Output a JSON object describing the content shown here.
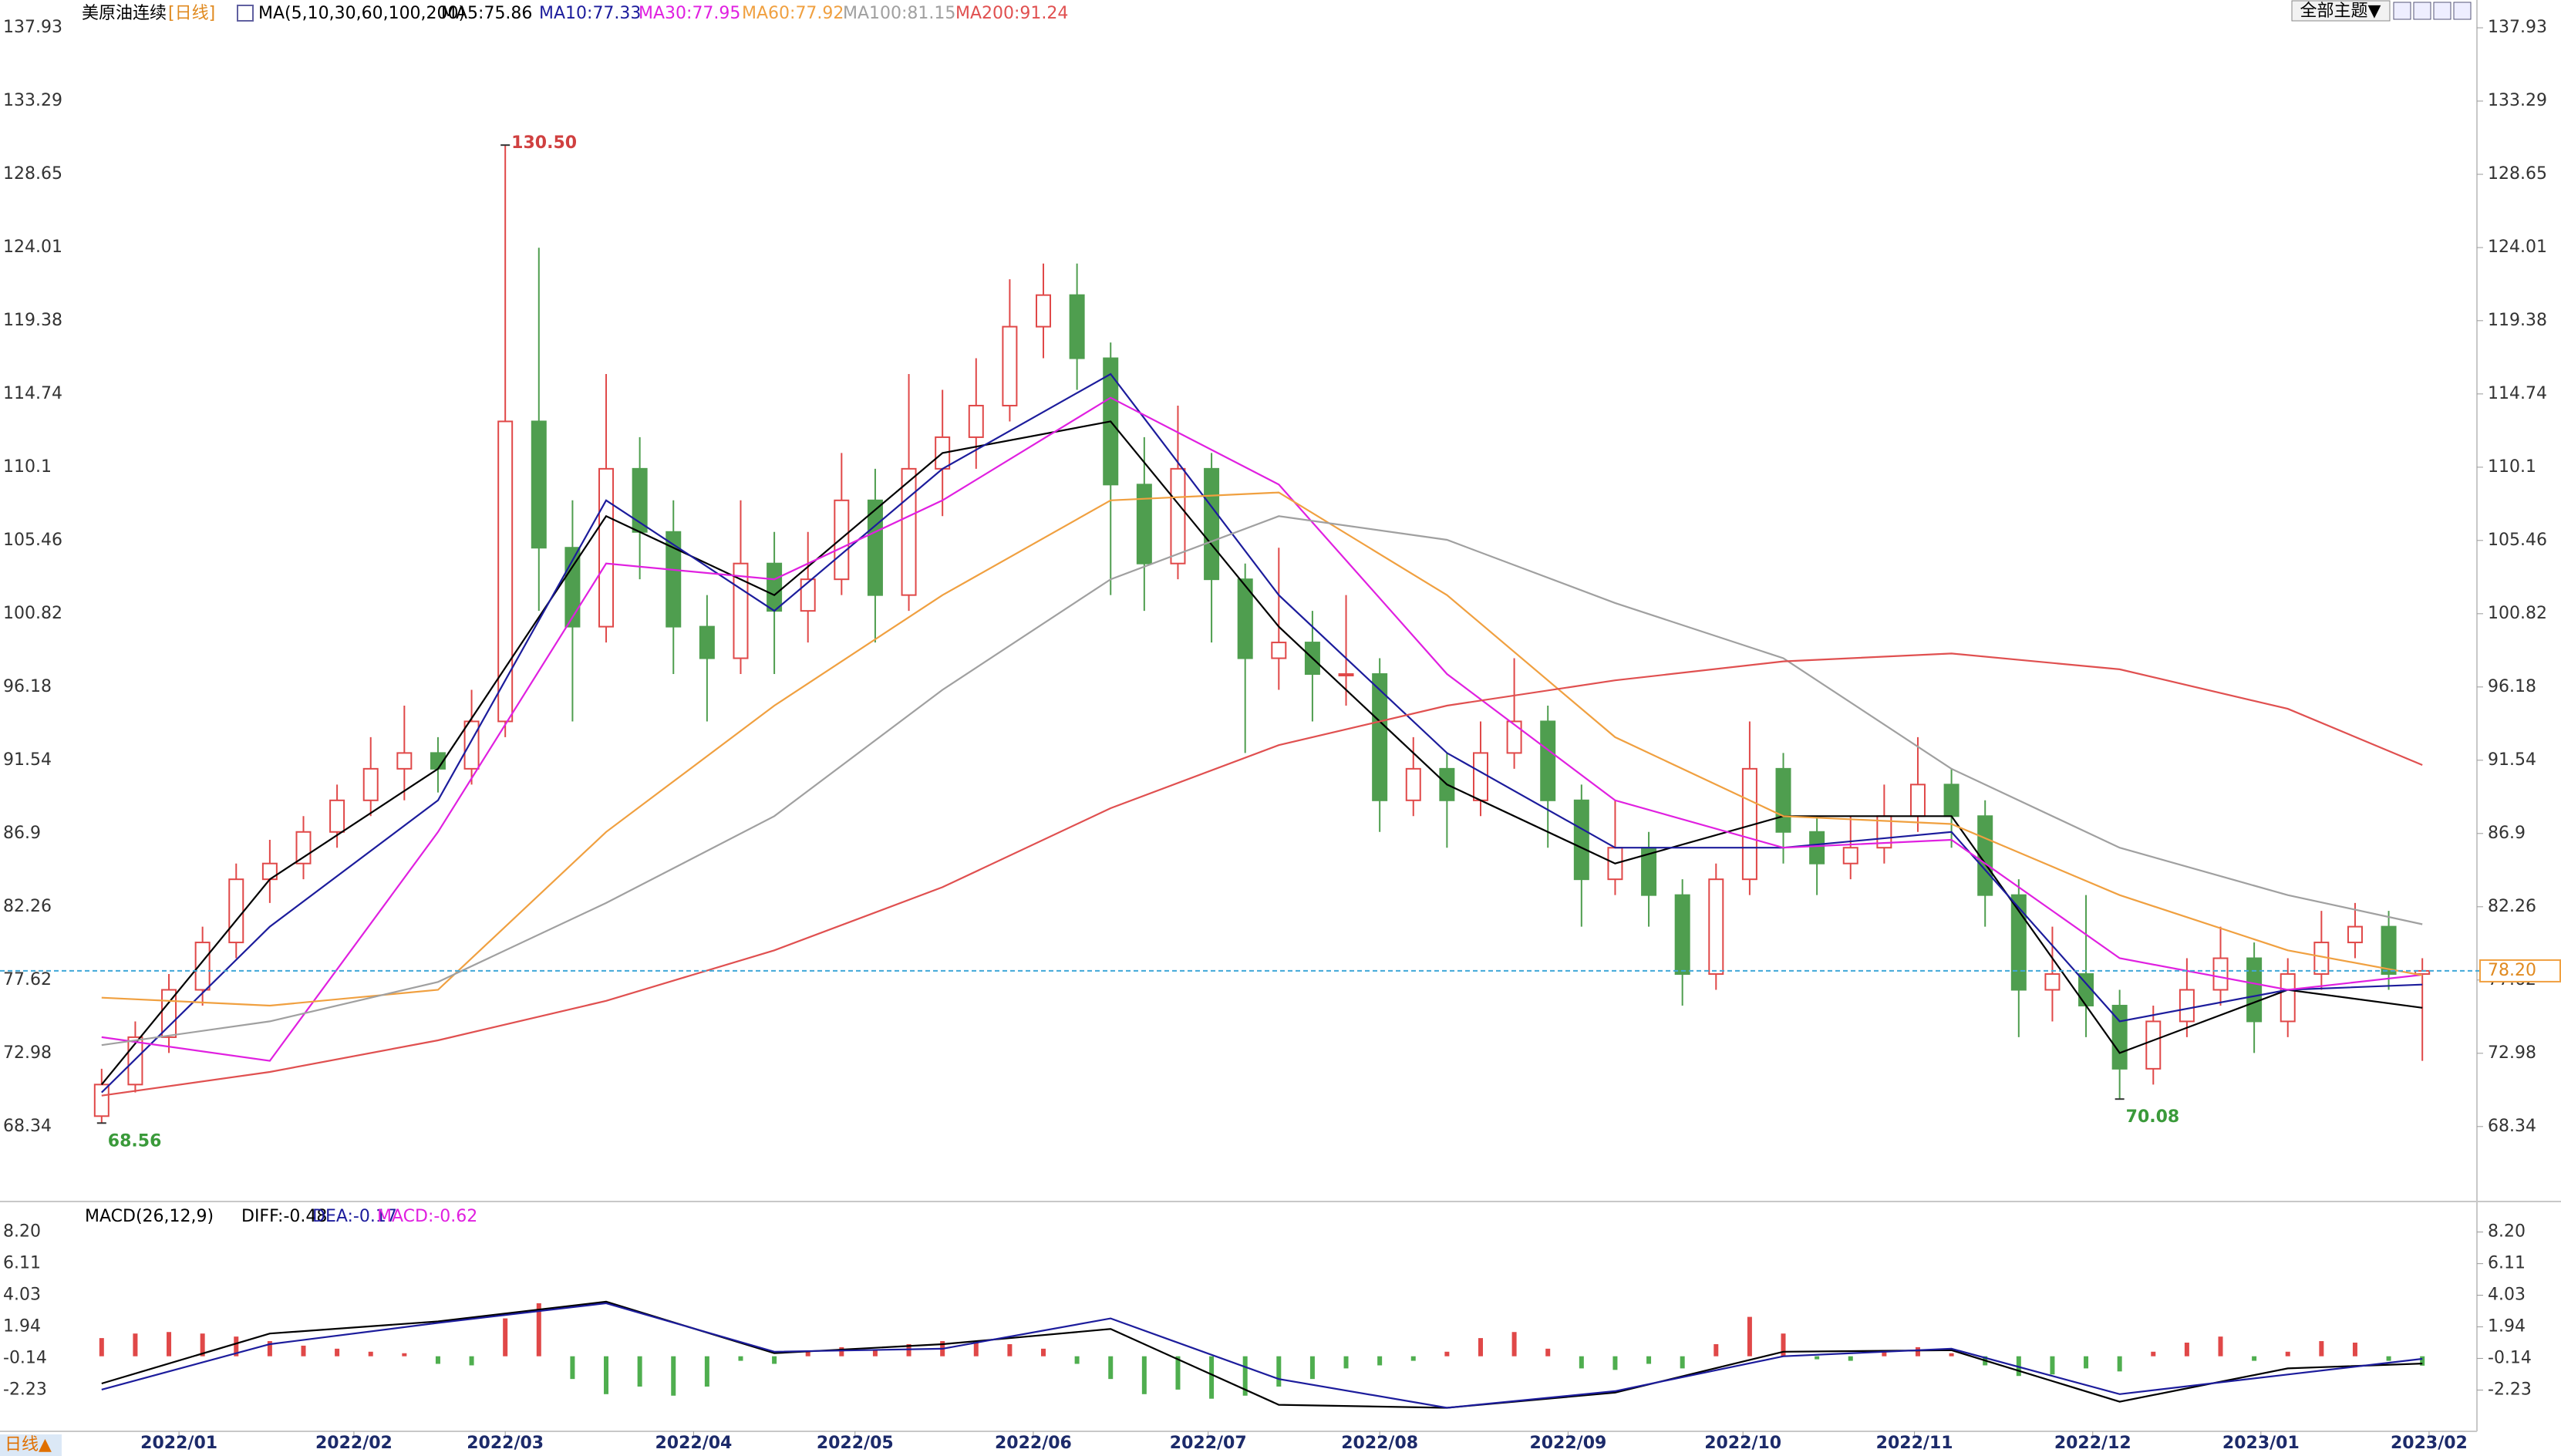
{
  "chart_data": [
    {
      "type": "candlestick",
      "title": "美原油连续",
      "period": "[日线]",
      "indicator": "MA(5,10,30,60,100,200)",
      "xlim": [
        -0.5,
        69.5
      ],
      "ylim": [
        63.69,
        139.69
      ],
      "yticks": [
        137.93,
        133.29,
        128.65,
        124.01,
        119.38,
        114.74,
        110.1,
        105.46,
        100.82,
        96.18,
        91.54,
        86.9,
        82.26,
        77.62,
        72.98,
        68.34
      ],
      "up_color": "#e04848",
      "down_color": "#4f9e4f",
      "candles": [
        [
          69,
          72,
          68.56,
          71
        ],
        [
          71,
          75,
          70.5,
          74
        ],
        [
          74,
          78,
          73,
          77
        ],
        [
          77,
          81,
          76,
          80
        ],
        [
          80,
          85,
          79,
          84
        ],
        [
          84,
          86.5,
          82.5,
          85
        ],
        [
          85,
          88,
          84,
          87
        ],
        [
          87,
          90,
          86,
          89
        ],
        [
          89,
          93,
          88,
          91
        ],
        [
          91,
          95,
          89,
          92
        ],
        [
          92,
          93,
          89.5,
          91
        ],
        [
          91,
          96,
          90,
          94
        ],
        [
          94,
          130.5,
          93,
          113
        ],
        [
          113,
          124,
          101,
          105
        ],
        [
          105,
          108,
          94,
          100
        ],
        [
          100,
          116,
          99,
          110
        ],
        [
          110,
          112,
          103,
          106
        ],
        [
          106,
          108,
          97,
          100
        ],
        [
          100,
          102,
          94,
          98
        ],
        [
          98,
          108,
          97,
          104
        ],
        [
          104,
          106,
          97,
          101
        ],
        [
          101,
          106,
          99,
          103
        ],
        [
          103,
          111,
          102,
          108
        ],
        [
          108,
          110,
          99,
          102
        ],
        [
          102,
          116,
          101,
          110
        ],
        [
          110,
          115,
          107,
          112
        ],
        [
          112,
          117,
          110,
          114
        ],
        [
          114,
          122,
          113,
          119
        ],
        [
          119,
          123,
          117,
          121
        ],
        [
          121,
          123,
          115,
          117
        ],
        [
          117,
          118,
          102,
          109
        ],
        [
          109,
          112,
          101,
          104
        ],
        [
          104,
          114,
          103,
          110
        ],
        [
          110,
          111,
          99,
          103
        ],
        [
          103,
          104,
          92,
          98
        ],
        [
          98,
          105,
          96,
          99
        ],
        [
          99,
          101,
          94,
          97
        ],
        [
          97,
          102,
          95,
          97
        ],
        [
          97,
          98,
          87,
          89
        ],
        [
          89,
          93,
          88,
          91
        ],
        [
          91,
          92,
          86,
          89
        ],
        [
          89,
          94,
          88,
          92
        ],
        [
          92,
          98,
          91,
          94
        ],
        [
          94,
          95,
          86,
          89
        ],
        [
          89,
          90,
          81,
          84
        ],
        [
          84,
          89,
          83,
          86
        ],
        [
          86,
          87,
          81,
          83
        ],
        [
          83,
          84,
          76,
          78
        ],
        [
          78,
          85,
          77,
          84
        ],
        [
          84,
          94,
          83,
          91
        ],
        [
          91,
          92,
          85,
          87
        ],
        [
          87,
          88,
          83,
          85
        ],
        [
          85,
          88,
          84,
          86
        ],
        [
          86,
          90,
          85,
          88
        ],
        [
          88,
          93,
          87,
          90
        ],
        [
          90,
          91,
          86,
          88
        ],
        [
          88,
          89,
          81,
          83
        ],
        [
          83,
          84,
          74,
          77
        ],
        [
          77,
          81,
          75,
          78
        ],
        [
          78,
          83,
          74,
          76
        ],
        [
          76,
          77,
          70.08,
          72
        ],
        [
          72,
          76,
          71,
          75
        ],
        [
          75,
          79,
          74,
          77
        ],
        [
          77,
          81,
          76,
          79
        ],
        [
          79,
          80,
          73,
          75
        ],
        [
          75,
          79,
          74,
          78
        ],
        [
          78,
          82,
          77,
          80
        ],
        [
          80,
          82.5,
          79,
          81
        ],
        [
          81,
          82,
          77,
          78
        ],
        [
          78,
          79,
          72.5,
          78.2
        ]
      ],
      "series": [
        {
          "name": "MA5",
          "legend_label": "MA5:75.86",
          "color": "#000000",
          "x": [
            0,
            5,
            10,
            15,
            20,
            25,
            30,
            35,
            40,
            45,
            50,
            55,
            60,
            65,
            69
          ],
          "values": [
            71,
            84,
            91,
            107,
            102,
            111,
            113,
            100,
            90,
            85,
            88,
            88,
            73,
            77,
            75.86
          ]
        },
        {
          "name": "MA10",
          "legend_label": "MA10:77.33",
          "color": "#1c1c9c",
          "x": [
            0,
            5,
            10,
            15,
            20,
            25,
            30,
            35,
            40,
            45,
            50,
            55,
            60,
            65,
            69
          ],
          "values": [
            70.5,
            81,
            89,
            108,
            101,
            110,
            116,
            102,
            92,
            86,
            86,
            87,
            75,
            77,
            77.33
          ]
        },
        {
          "name": "MA30",
          "legend_label": "MA30:77.95",
          "color": "#e020e0",
          "x": [
            0,
            5,
            10,
            15,
            20,
            25,
            30,
            35,
            40,
            45,
            50,
            55,
            60,
            65,
            69
          ],
          "values": [
            74,
            72.5,
            87,
            104,
            103,
            108,
            114.5,
            109,
            97,
            89,
            86,
            86.5,
            79,
            77,
            77.95
          ]
        },
        {
          "name": "MA60",
          "legend_label": "MA60:77.92",
          "color": "#f0a040",
          "x": [
            0,
            5,
            10,
            15,
            20,
            25,
            30,
            35,
            40,
            45,
            50,
            55,
            60,
            65,
            69
          ],
          "values": [
            76.5,
            76,
            77,
            87,
            95,
            102,
            108,
            108.5,
            102,
            93,
            88,
            87.5,
            83,
            79.5,
            77.92
          ]
        },
        {
          "name": "MA100",
          "legend_label": "MA100:81.15",
          "color": "#a0a0a0",
          "x": [
            0,
            5,
            10,
            15,
            20,
            25,
            30,
            35,
            40,
            45,
            50,
            55,
            60,
            65,
            69
          ],
          "values": [
            73.5,
            75,
            77.5,
            82.5,
            88,
            96,
            103,
            107,
            105.5,
            101.5,
            98,
            91,
            86,
            83,
            81.15
          ]
        },
        {
          "name": "MA200",
          "legend_label": "MA200:91.24",
          "color": "#e05050",
          "x": [
            0,
            5,
            10,
            15,
            20,
            25,
            30,
            35,
            40,
            45,
            50,
            55,
            60,
            65,
            69
          ],
          "values": [
            70.3,
            71.8,
            73.8,
            76.3,
            79.5,
            83.5,
            88.5,
            92.5,
            95,
            96.6,
            97.8,
            98.3,
            97.3,
            94.8,
            91.24
          ]
        }
      ],
      "annotations": [
        {
          "index": 12,
          "value": 130.5,
          "label": "130.50",
          "color": "#d04040"
        },
        {
          "index": 0,
          "value": 68.56,
          "label": "68.56",
          "color": "#3a9a3a"
        },
        {
          "index": 60,
          "value": 70.08,
          "label": "70.08",
          "color": "#3a9a3a"
        }
      ],
      "price_line": {
        "value": 78.2,
        "label": "78.20"
      }
    },
    {
      "type": "macd",
      "title": "MACD(26,12,9)",
      "xlim": [
        -0.5,
        69.5
      ],
      "ylim": [
        -4.8,
        9.5
      ],
      "yticks": [
        {
          "value": 8.2,
          "label": "8.20"
        },
        6.11,
        4.03,
        1.94,
        -0.14,
        -2.23
      ],
      "xticks": [
        {
          "value": 2.3,
          "label": "2022/01"
        },
        {
          "value": 7.5,
          "label": "2022/02"
        },
        {
          "value": 12,
          "label": "2022/03"
        },
        {
          "value": 17.6,
          "label": "2022/04"
        },
        {
          "value": 22.4,
          "label": "2022/05"
        },
        {
          "value": 27.7,
          "label": "2022/06"
        },
        {
          "value": 32.9,
          "label": "2022/07"
        },
        {
          "value": 38,
          "label": "2022/08"
        },
        {
          "value": 43.6,
          "label": "2022/09"
        },
        {
          "value": 48.8,
          "label": "2022/10"
        },
        {
          "value": 53.9,
          "label": "2022/11"
        },
        {
          "value": 59.2,
          "label": "2022/12"
        },
        {
          "value": 64.2,
          "label": "2023/01"
        },
        {
          "value": 69.2,
          "label": "2023/02"
        }
      ],
      "series": [
        {
          "name": "DIFF",
          "legend_label": "DIFF:-0.48",
          "color": "#000000",
          "x": [
            0,
            5,
            10,
            15,
            20,
            25,
            30,
            35,
            40,
            45,
            50,
            55,
            60,
            65,
            69
          ],
          "values": [
            -1.8,
            1.5,
            2.3,
            3.6,
            0.2,
            0.8,
            1.8,
            -3.2,
            -3.4,
            -2.4,
            0.3,
            0.4,
            -3,
            -0.8,
            -0.48
          ]
        },
        {
          "name": "DEA",
          "legend_label": "DEA:-0.17",
          "color": "#1c1c9c",
          "x": [
            0,
            5,
            10,
            15,
            20,
            25,
            30,
            35,
            40,
            45,
            50,
            55,
            60,
            65,
            69
          ],
          "values": [
            -2.2,
            0.8,
            2.2,
            3.5,
            0.3,
            0.5,
            2.5,
            -1.5,
            -3.4,
            -2.3,
            0,
            0.5,
            -2.5,
            -1.2,
            -0.17
          ]
        }
      ],
      "histogram": {
        "name": "MACD",
        "legend_label": "MACD:-0.62",
        "color": "#e020e0",
        "up_color": "#e04848",
        "down_color": "#4fae4f",
        "values": [
          1.2,
          1.5,
          1.6,
          1.5,
          1.3,
          1,
          0.7,
          0.5,
          0.3,
          0.2,
          -0.5,
          -0.6,
          2.5,
          3.5,
          -1.5,
          -2.5,
          -2,
          -2.6,
          -2,
          -0.3,
          -0.5,
          0.3,
          0.6,
          0.4,
          0.8,
          1,
          0.9,
          0.8,
          0.5,
          -0.5,
          -1.5,
          -2.5,
          -2.2,
          -2.8,
          -2.6,
          -2,
          -1.5,
          -0.8,
          -0.6,
          -0.3,
          0.3,
          1.2,
          1.6,
          0.5,
          -0.8,
          -0.9,
          -0.5,
          -0.8,
          0.8,
          2.6,
          1.5,
          -0.2,
          -0.3,
          0.4,
          0.6,
          0.2,
          -0.6,
          -1.3,
          -1.2,
          -0.8,
          -1,
          0.3,
          0.9,
          1.3,
          -0.3,
          0.3,
          1,
          0.9,
          -0.3,
          -0.62
        ]
      }
    }
  ],
  "ui": {
    "theme_button": "全部主题▼",
    "period_tab": "日线▲"
  }
}
